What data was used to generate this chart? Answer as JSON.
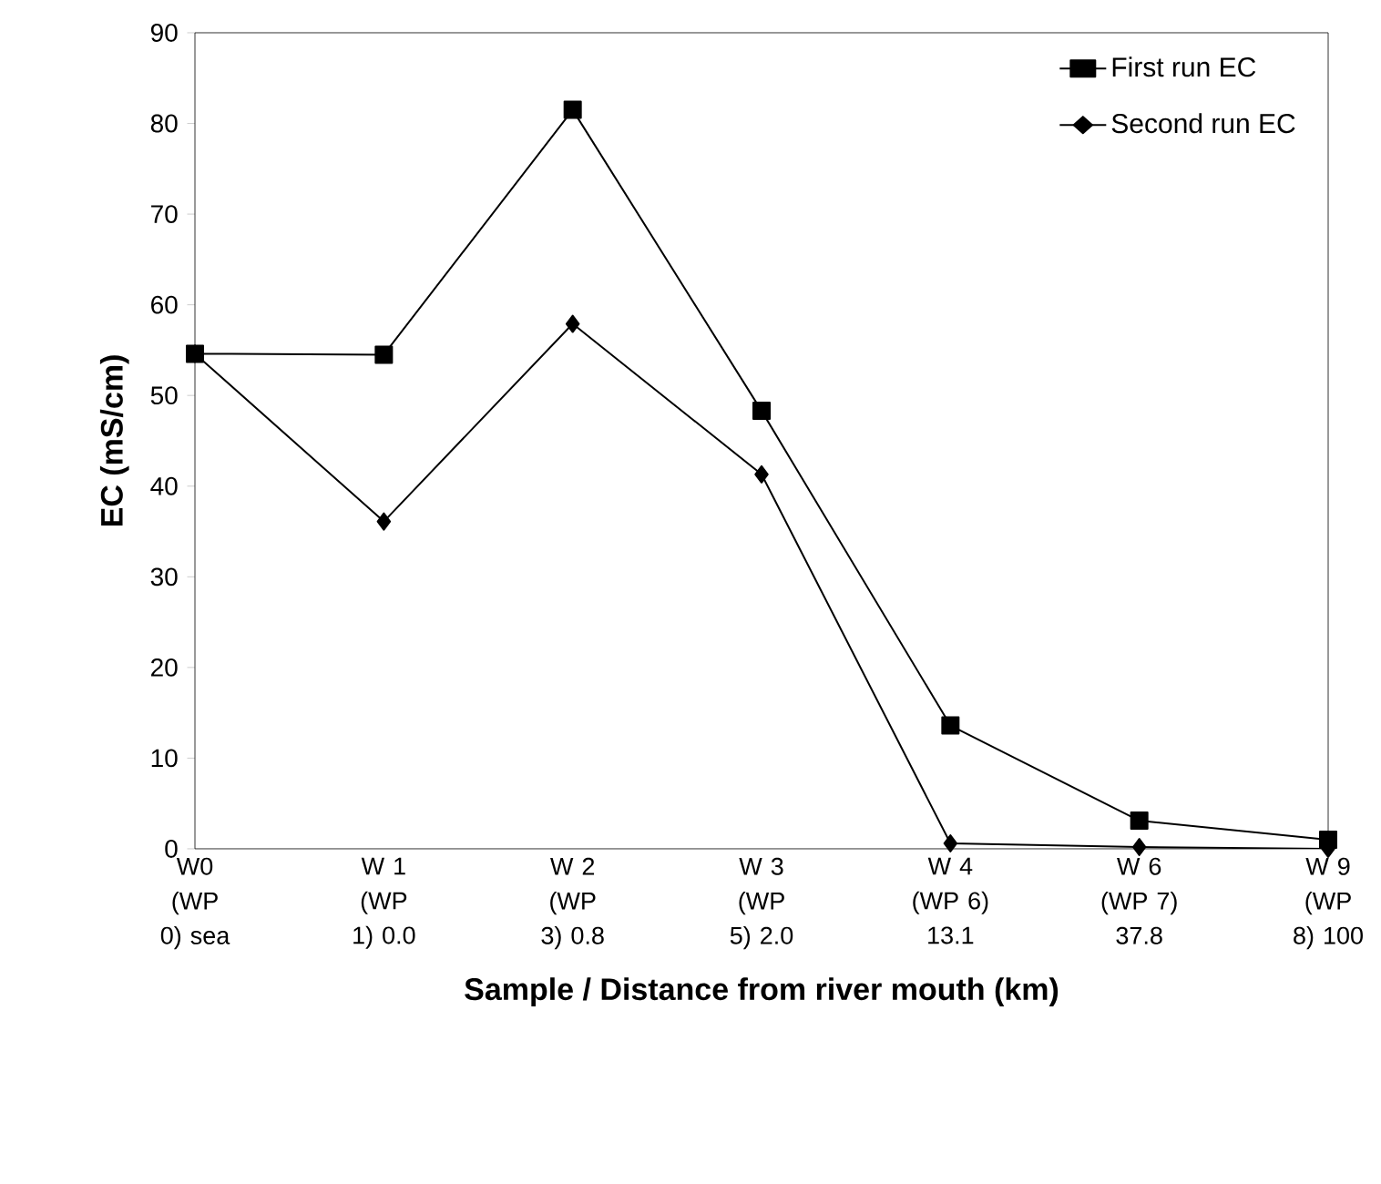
{
  "chart_data": {
    "type": "line",
    "xlabel": "Sample / Distance from river mouth (km)",
    "ylabel": "EC (mS/cm)",
    "categories": [
      "W0 (WP 0) sea",
      "W 1 (WP 1) 0.0",
      "W 2 (WP 3) 0.8",
      "W 3 (WP 5) 2.0",
      "W 4 (WP 6) 13.1",
      "W 6 (WP 7) 37.8",
      "W 9 (WP 8) 100"
    ],
    "series": [
      {
        "name": "First run EC",
        "color": "#000000",
        "marker": "square",
        "values": [
          54.6,
          54.5,
          81.5,
          48.3,
          13.6,
          3.1,
          1.0
        ]
      },
      {
        "name": "Second run EC",
        "color": "#000000",
        "marker": "diamond",
        "values": [
          54.6,
          36.1,
          57.9,
          41.3,
          0.6,
          0.2,
          0.0
        ]
      }
    ],
    "ylim": [
      0,
      90
    ],
    "yticks": [
      0,
      10,
      20,
      30,
      40,
      50,
      60,
      70,
      80,
      90
    ],
    "grid": false,
    "legend": "top right",
    "line_style": "solid"
  }
}
